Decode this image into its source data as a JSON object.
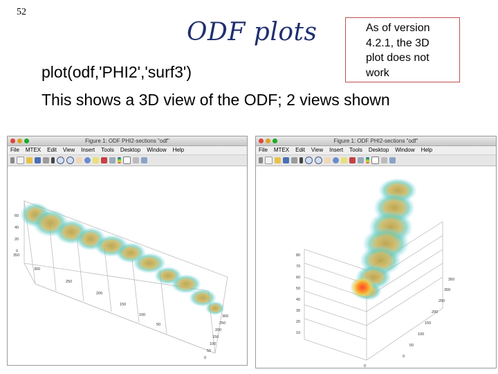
{
  "slide": {
    "number": "52",
    "title": "ODF plots",
    "note_lines": [
      "As of version",
      "4.2.1, the 3D",
      "plot does not",
      "work"
    ],
    "command": "plot(odf,'PHI2','surf3')",
    "description": "This shows a 3D view of the ODF; 2 views shown"
  },
  "windows": [
    {
      "title": "Figure 1: ODF PHI2-sections \"odf\"",
      "menu": [
        "File",
        "MTEX",
        "Edit",
        "View",
        "Insert",
        "Tools",
        "Desktop",
        "Window",
        "Help"
      ],
      "z_ticks": [
        "60",
        "40",
        "20",
        "0"
      ],
      "y_ticks": [
        "350",
        "300",
        "250",
        "200",
        "150",
        "100",
        "50"
      ],
      "x_ticks": [
        "300",
        "250",
        "200",
        "150",
        "100",
        "50",
        "0"
      ]
    },
    {
      "title": "Figure 1: ODF PHI2-sections \"odf\"",
      "menu": [
        "File",
        "MTEX",
        "Edit",
        "View",
        "Insert",
        "Tools",
        "Desktop",
        "Window",
        "Help"
      ],
      "z_ticks": [
        "80",
        "70",
        "60",
        "50",
        "40",
        "30",
        "20",
        "10"
      ],
      "y_ticks": [
        "350",
        "300",
        "250",
        "200",
        "150",
        "100",
        "50",
        "0"
      ],
      "x_ticks": [
        "0"
      ]
    }
  ],
  "colors": {
    "title": "#1f2f6f",
    "note_border": "#c0504d"
  }
}
